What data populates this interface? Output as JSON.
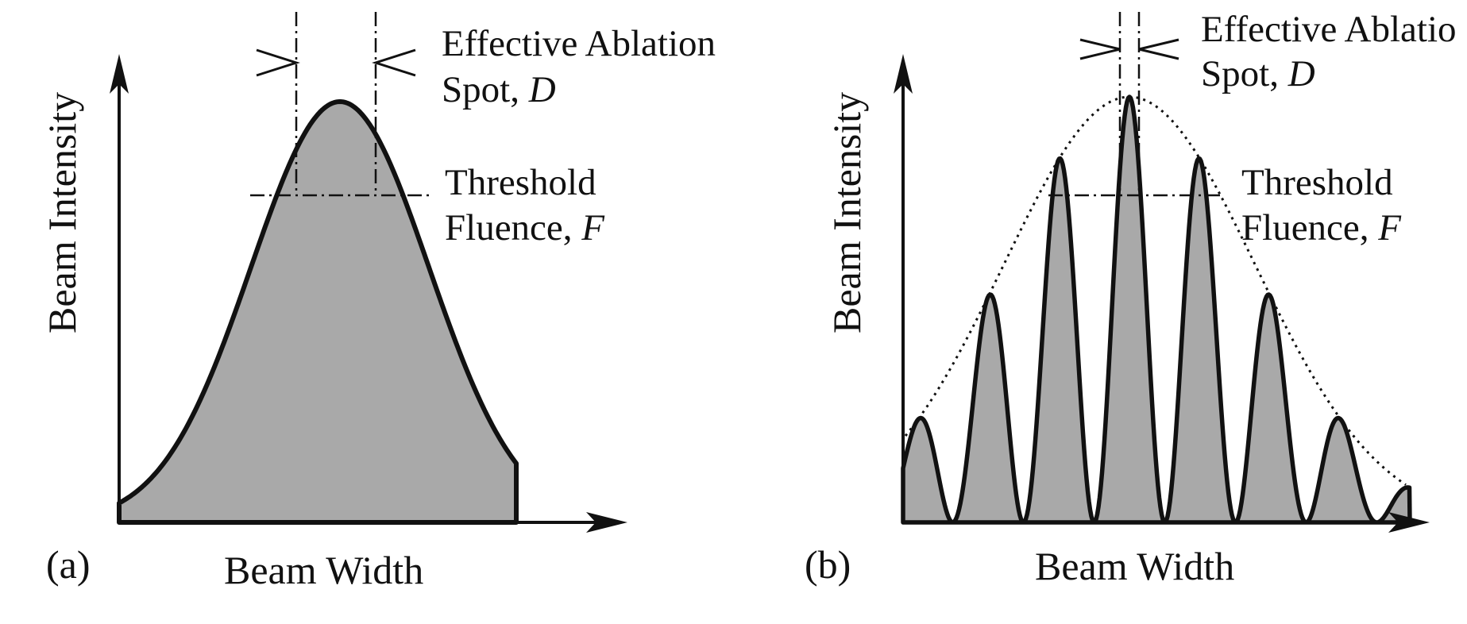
{
  "panels": [
    {
      "id": "a",
      "panel_label": "(a)",
      "x_axis_label": "Beam Width",
      "y_axis_label": "Beam Intensity",
      "spot_annotation": {
        "line1": "Effective Ablation",
        "line2_prefix": "Spot, ",
        "line2_var": "D"
      },
      "threshold_annotation": {
        "line1": "Threshold",
        "line2_prefix": "Fluence, ",
        "line2_var": "F"
      }
    },
    {
      "id": "b",
      "panel_label": "(b)",
      "x_axis_label": "Beam Width",
      "y_axis_label": "Beam Intensity",
      "spot_annotation": {
        "line1": "Effective Ablatio",
        "line2_prefix": "Spot, ",
        "line2_var": "D"
      },
      "threshold_annotation": {
        "line1": "Threshold",
        "line2_prefix": "Fluence, ",
        "line2_var": "F"
      }
    }
  ],
  "colors": {
    "fill": "#a9a9a9",
    "stroke": "#111111"
  }
}
